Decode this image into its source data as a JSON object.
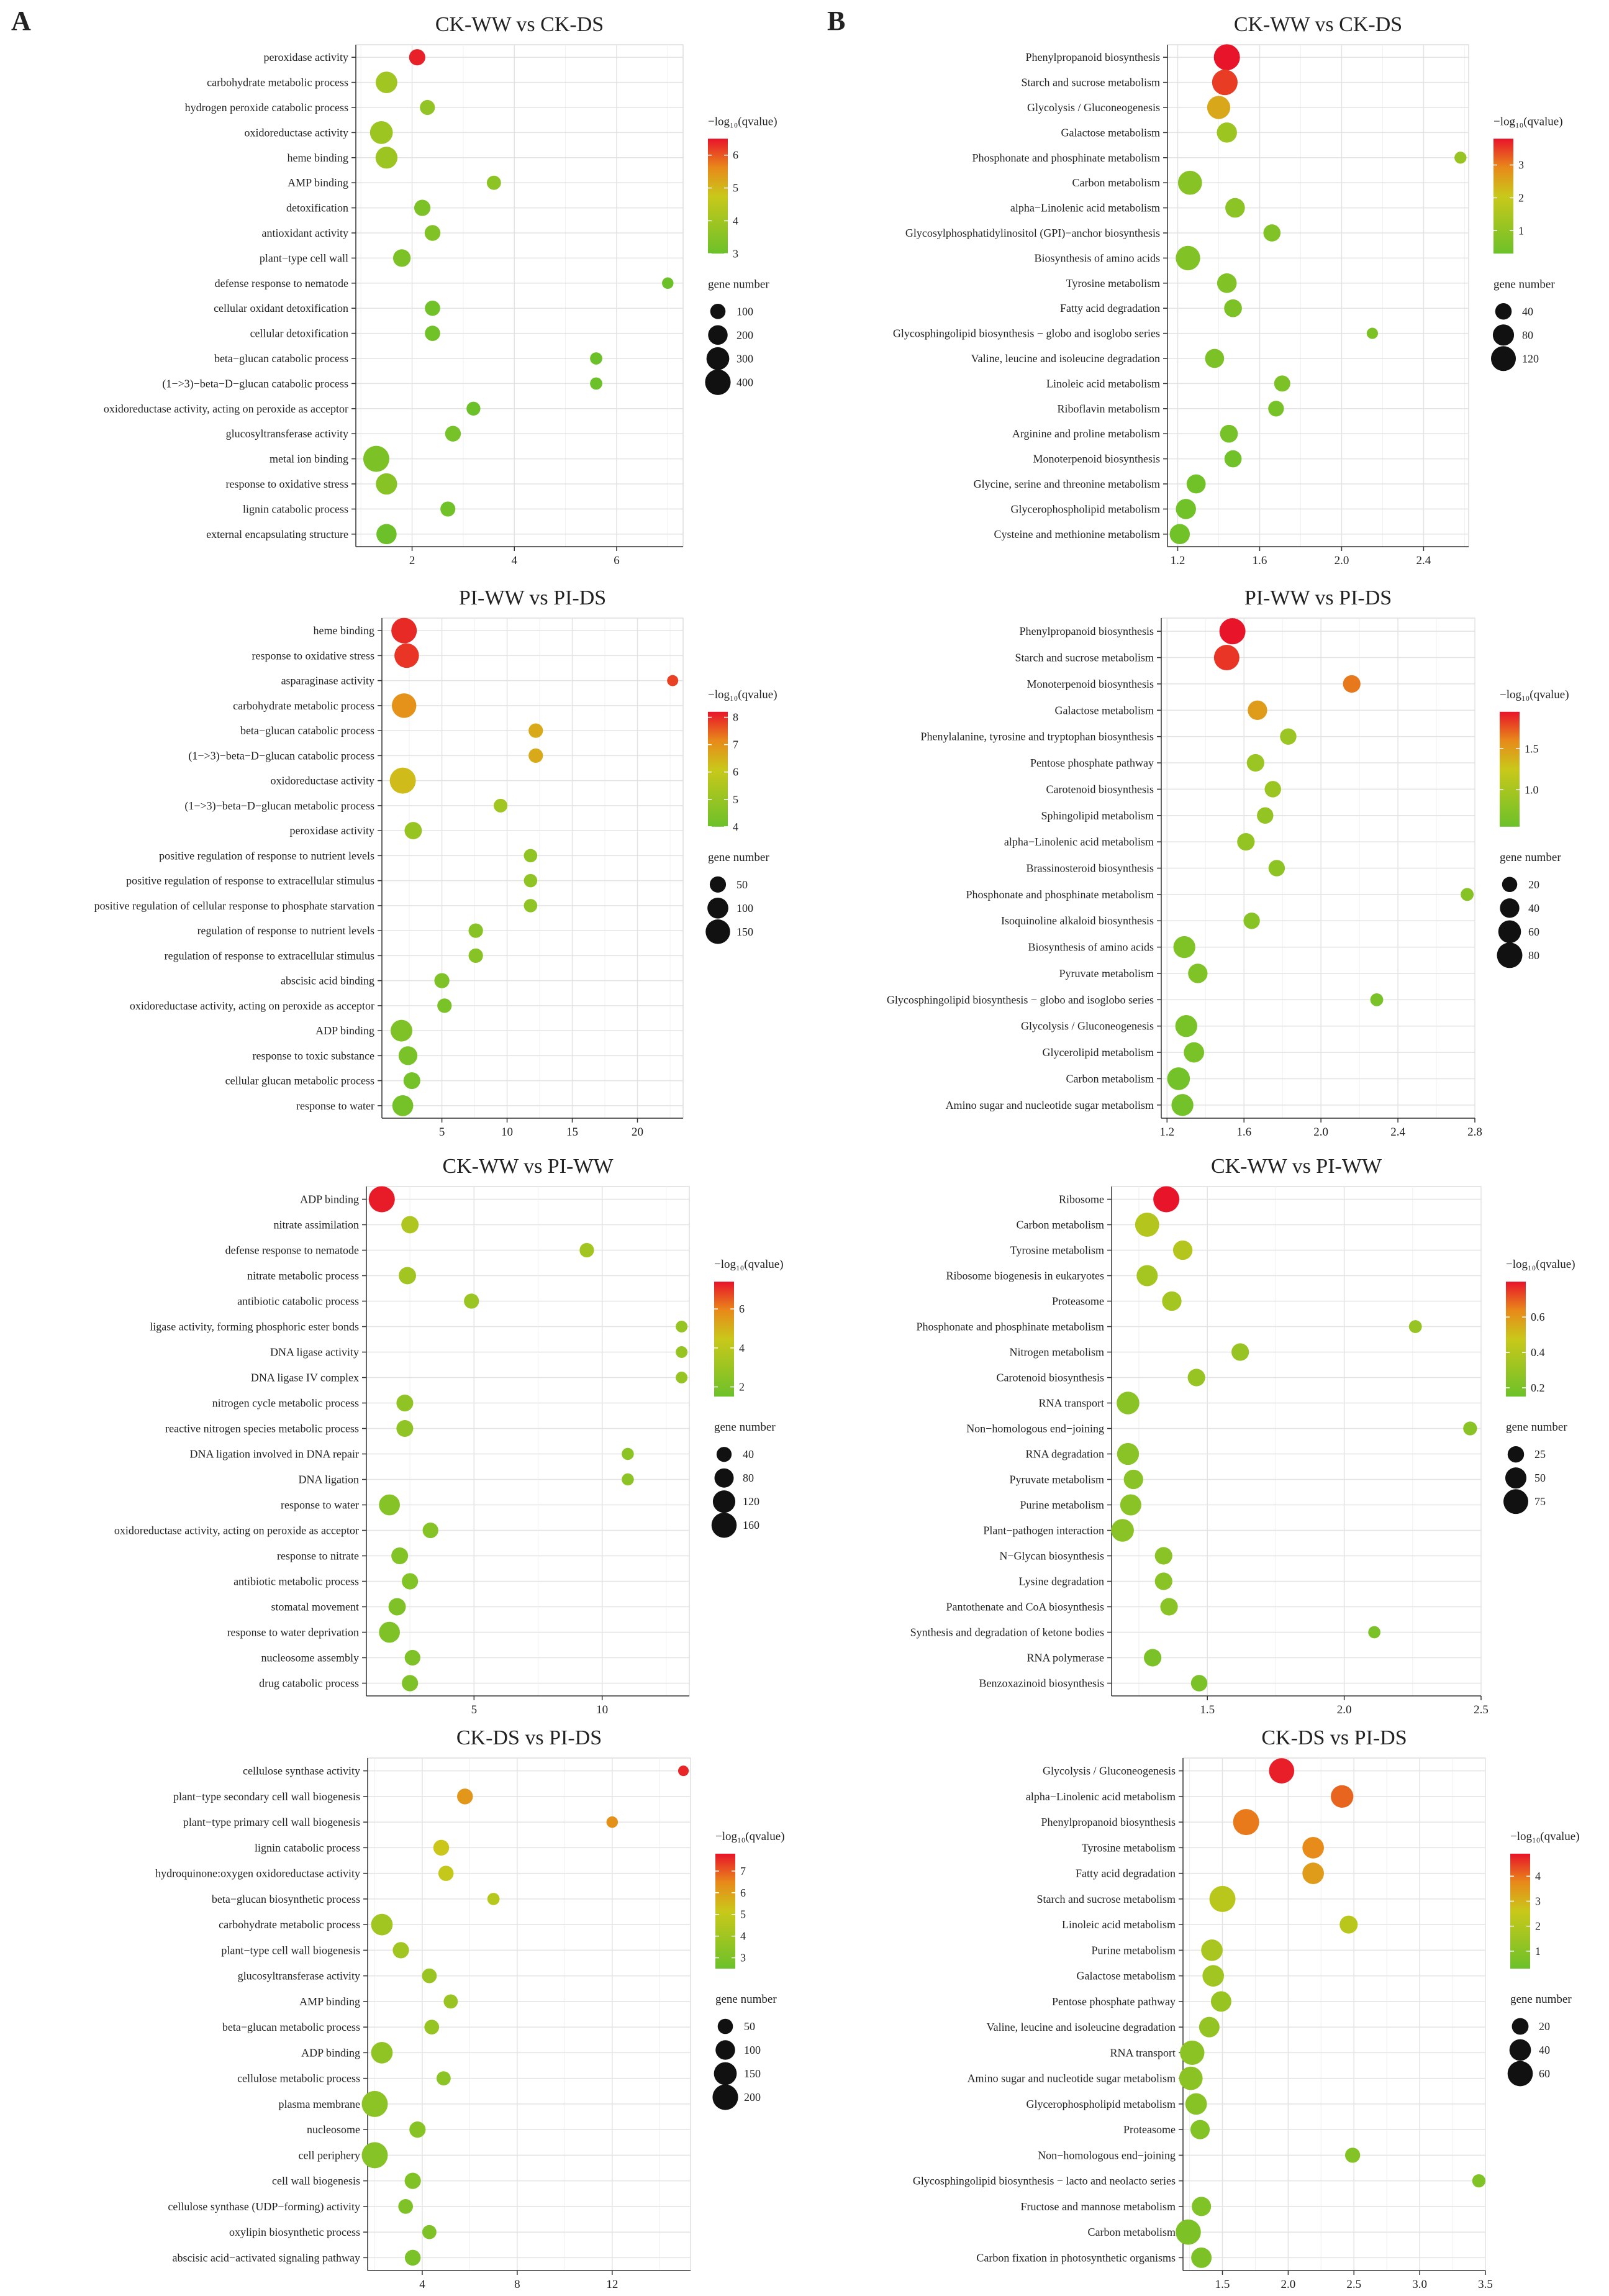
{
  "figure_labels": [
    "A",
    "B"
  ],
  "legend_text": {
    "q_title": "−log₁₀(qvalue)",
    "gene_title": "gene number"
  },
  "colors": {
    "low": "#6cc12a",
    "mid": "#c9c81a",
    "high": "#e8142a",
    "grid": "#e3e3e3",
    "panel": "#ffffff"
  },
  "chart_data": [
    {
      "type": "scatter",
      "title": "CK-WW vs CK-DS",
      "xlabel": "",
      "ylabel": "",
      "xlim": [
        0.9,
        7.3
      ],
      "xticks": [
        2,
        4,
        6
      ],
      "categories": [
        "peroxidase activity",
        "carbohydrate metabolic process",
        "hydrogen peroxide catabolic process",
        "oxidoreductase activity",
        "heme binding",
        "AMP binding",
        "detoxification",
        "antioxidant activity",
        "plant−type cell wall",
        "defense response to nematode",
        "cellular oxidant detoxification",
        "cellular detoxification",
        "beta−glucan catabolic process",
        "(1−>3)−beta−D−glucan catabolic process",
        "oxidoreductase activity, acting on peroxide as acceptor",
        "glucosyltransferase activity",
        "metal ion binding",
        "response to oxidative stress",
        "lignin catabolic process",
        "external encapsulating structure"
      ],
      "x": [
        2.1,
        1.5,
        2.3,
        1.4,
        1.5,
        3.6,
        2.2,
        2.4,
        1.8,
        7.0,
        2.4,
        2.4,
        5.6,
        5.6,
        3.2,
        2.8,
        1.3,
        1.5,
        2.7,
        1.5
      ],
      "q": [
        6.4,
        4.0,
        3.7,
        3.9,
        3.9,
        3.6,
        3.3,
        3.4,
        3.3,
        3.0,
        3.1,
        3.1,
        3.0,
        3.0,
        3.0,
        3.2,
        3.3,
        3.5,
        3.1,
        3.0
      ],
      "size": [
        120,
        260,
        95,
        300,
        270,
        80,
        120,
        110,
        150,
        40,
        100,
        100,
        50,
        50,
        75,
        110,
        420,
        250,
        95,
        220
      ],
      "color_scale": {
        "min": 3,
        "max": 6.5,
        "ticks": [
          3,
          4,
          5,
          6
        ]
      },
      "size_scale": {
        "max": 420,
        "ticks": [
          100,
          200,
          300,
          400
        ]
      }
    },
    {
      "type": "scatter",
      "title": "CK-WW vs CK-DS",
      "xlabel": "",
      "ylabel": "",
      "xlim": [
        1.15,
        2.62
      ],
      "xticks": [
        1.2,
        1.6,
        2.0,
        2.4
      ],
      "categories": [
        "Phenylpropanoid biosynthesis",
        "Starch and sucrose metabolism",
        "Glycolysis / Gluconeogenesis",
        "Galactose metabolism",
        "Phosphonate and phosphinate metabolism",
        "Carbon metabolism",
        "alpha−Linolenic acid metabolism",
        "Glycosylphosphatidylinositol (GPI)−anchor biosynthesis",
        "Biosynthesis of amino acids",
        "Tyrosine metabolism",
        "Fatty acid degradation",
        "Glycosphingolipid biosynthesis − globo and isoglobo series",
        "Valine, leucine and isoleucine degradation",
        "Linoleic acid metabolism",
        "Riboflavin metabolism",
        "Arginine and proline metabolism",
        "Monoterpenoid biosynthesis",
        "Glycine, serine and threonine metabolism",
        "Glycerophospholipid metabolism",
        "Cysteine and methionine metabolism"
      ],
      "x": [
        1.44,
        1.43,
        1.4,
        1.44,
        2.58,
        1.26,
        1.48,
        1.66,
        1.25,
        1.44,
        1.47,
        2.15,
        1.38,
        1.71,
        1.68,
        1.45,
        1.47,
        1.29,
        1.24,
        1.21
      ],
      "q": [
        3.8,
        3.5,
        2.5,
        1.2,
        1.1,
        0.8,
        0.9,
        0.7,
        0.7,
        0.7,
        0.6,
        0.6,
        0.6,
        0.6,
        0.5,
        0.5,
        0.4,
        0.4,
        0.4,
        0.4
      ],
      "size": [
        135,
        128,
        100,
        70,
        15,
        110,
        65,
        45,
        115,
        65,
        50,
        12,
        60,
        38,
        35,
        50,
        45,
        60,
        70,
        70
      ],
      "color_scale": {
        "min": 0.3,
        "max": 3.8,
        "ticks": [
          1,
          2,
          3
        ]
      },
      "size_scale": {
        "max": 135,
        "ticks": [
          40,
          80,
          120
        ]
      }
    },
    {
      "type": "scatter",
      "title": "PI-WW vs PI-DS",
      "xlabel": "",
      "ylabel": "",
      "xlim": [
        0.4,
        23.5
      ],
      "xticks": [
        5,
        10,
        15,
        20
      ],
      "categories": [
        "heme binding",
        "response to oxidative stress",
        "asparaginase activity",
        "carbohydrate metabolic process",
        "beta−glucan catabolic process",
        "(1−>3)−beta−D−glucan catabolic process",
        "oxidoreductase activity",
        "(1−>3)−beta−D−glucan metabolic process",
        "peroxidase activity",
        "positive regulation of response to nutrient levels",
        "positive regulation of response to extracellular stimulus",
        "positive regulation of cellular response to phosphate starvation",
        "regulation of response to nutrient levels",
        "regulation of response to extracellular stimulus",
        "abscisic acid binding",
        "oxidoreductase activity, acting on peroxide as acceptor",
        "ADP binding",
        "response to toxic substance",
        "cellular glucan metabolic process",
        "response to water"
      ],
      "x": [
        2.1,
        2.3,
        22.7,
        2.1,
        12.2,
        12.2,
        2.0,
        9.5,
        2.8,
        11.8,
        11.8,
        11.8,
        7.6,
        7.6,
        5.0,
        5.2,
        1.9,
        2.4,
        2.7,
        2.0
      ],
      "q": [
        8.0,
        7.9,
        7.8,
        7.0,
        6.6,
        6.6,
        6.3,
        5.2,
        5.0,
        4.8,
        4.8,
        4.8,
        4.6,
        4.6,
        4.4,
        4.3,
        4.4,
        4.3,
        4.2,
        4.2
      ],
      "size": [
        165,
        150,
        15,
        150,
        35,
        35,
        175,
        30,
        60,
        28,
        28,
        28,
        35,
        35,
        40,
        35,
        110,
        75,
        55,
        100
      ],
      "color_scale": {
        "min": 4,
        "max": 8.2,
        "ticks": [
          4,
          5,
          6,
          7,
          8
        ]
      },
      "size_scale": {
        "max": 175,
        "ticks": [
          50,
          100,
          150
        ]
      }
    },
    {
      "type": "scatter",
      "title": "PI-WW vs PI-DS",
      "xlabel": "",
      "ylabel": "",
      "xlim": [
        1.17,
        2.8
      ],
      "xticks": [
        1.2,
        1.6,
        2.0,
        2.4,
        2.8
      ],
      "categories": [
        "Phenylpropanoid biosynthesis",
        "Starch and sucrose metabolism",
        "Monoterpenoid biosynthesis",
        "Galactose metabolism",
        "Phenylalanine, tyrosine and tryptophan biosynthesis",
        "Pentose phosphate pathway",
        "Carotenoid biosynthesis",
        "Sphingolipid metabolism",
        "alpha−Linolenic acid metabolism",
        "Brassinosteroid biosynthesis",
        "Phosphonate and phosphinate metabolism",
        "Isoquinoline alkaloid biosynthesis",
        "Biosynthesis of amino acids",
        "Pyruvate metabolism",
        "Glycosphingolipid biosynthesis − globo and isoglobo series",
        "Glycolysis / Gluconeogenesis",
        "Glycerolipid metabolism",
        "Carbon metabolism",
        "Amino sugar and nucleotide sugar metabolism"
      ],
      "x": [
        1.54,
        1.51,
        2.16,
        1.67,
        1.83,
        1.66,
        1.75,
        1.71,
        1.61,
        1.77,
        2.76,
        1.64,
        1.29,
        1.36,
        2.29,
        1.3,
        1.34,
        1.26,
        1.28
      ],
      "q": [
        1.95,
        1.85,
        1.65,
        1.5,
        0.9,
        0.9,
        0.9,
        0.85,
        0.85,
        0.8,
        0.75,
        0.75,
        0.7,
        0.7,
        0.65,
        0.65,
        0.65,
        0.6,
        0.6
      ],
      "size": [
        85,
        80,
        30,
        40,
        25,
        30,
        25,
        25,
        30,
        25,
        12,
        25,
        55,
        40,
        12,
        55,
        45,
        60,
        55
      ],
      "color_scale": {
        "min": 0.55,
        "max": 1.95,
        "ticks": [
          1.0,
          1.5
        ]
      },
      "color_tick_labels": [
        "1.0",
        "1.5"
      ],
      "size_scale": {
        "max": 85,
        "ticks": [
          20,
          40,
          60,
          80
        ]
      }
    },
    {
      "type": "scatter",
      "title": "CK-WW vs PI-WW",
      "xlabel": "",
      "ylabel": "",
      "xlim": [
        0.8,
        13.4
      ],
      "xticks": [
        5,
        10
      ],
      "categories": [
        "ADP binding",
        "nitrate assimilation",
        "defense response to nematode",
        "nitrate metabolic process",
        "antibiotic catabolic process",
        "ligase activity, forming phosphoric ester bonds",
        "DNA ligase activity",
        "DNA ligase IV complex",
        "nitrogen cycle metabolic process",
        "reactive nitrogen species metabolic process",
        "DNA ligation involved in DNA repair",
        "DNA ligation",
        "response to water",
        "oxidoreductase activity, acting on peroxide as acceptor",
        "response to nitrate",
        "antibiotic metabolic process",
        "stomatal movement",
        "response to water deprivation",
        "nucleosome assembly",
        "drug catabolic process"
      ],
      "x": [
        1.4,
        2.5,
        9.4,
        2.4,
        4.9,
        13.1,
        13.1,
        13.1,
        2.3,
        2.3,
        11.0,
        11.0,
        1.7,
        3.3,
        2.1,
        2.5,
        2.0,
        1.7,
        2.6,
        2.5
      ],
      "q": [
        7.3,
        3.6,
        3.2,
        3.2,
        3.0,
        2.8,
        2.8,
        2.8,
        2.6,
        2.6,
        2.5,
        2.5,
        2.3,
        2.3,
        2.2,
        2.2,
        2.1,
        2.1,
        2.1,
        2.1
      ],
      "size": [
        175,
        60,
        35,
        60,
        40,
        18,
        18,
        18,
        55,
        55,
        20,
        20,
        100,
        45,
        55,
        50,
        60,
        100,
        45,
        50
      ],
      "color_scale": {
        "min": 1.5,
        "max": 7.4,
        "ticks": [
          2,
          4,
          6
        ]
      },
      "size_scale": {
        "max": 175,
        "ticks": [
          40,
          80,
          120,
          160
        ]
      }
    },
    {
      "type": "scatter",
      "title": "CK-WW vs PI-WW",
      "xlabel": "",
      "ylabel": "",
      "xlim": [
        1.15,
        2.5
      ],
      "xticks": [
        1.5,
        2.0,
        2.5
      ],
      "categories": [
        "Ribosome",
        "Carbon metabolism",
        "Tyrosine metabolism",
        "Ribosome biogenesis in eukaryotes",
        "Proteasome",
        "Phosphonate and phosphinate metabolism",
        "Nitrogen metabolism",
        "Carotenoid biosynthesis",
        "RNA transport",
        "Non−homologous end−joining",
        "RNA degradation",
        "Pyruvate metabolism",
        "Purine metabolism",
        "Plant−pathogen interaction",
        "N−Glycan biosynthesis",
        "Lysine degradation",
        "Pantothenate and CoA biosynthesis",
        "Synthesis and degradation of ketone bodies",
        "RNA polymerase",
        "Benzoxazinoid biosynthesis"
      ],
      "x": [
        1.35,
        1.28,
        1.41,
        1.28,
        1.37,
        2.26,
        1.62,
        1.46,
        1.21,
        2.46,
        1.21,
        1.23,
        1.22,
        1.19,
        1.34,
        1.34,
        1.36,
        2.11,
        1.3,
        1.47
      ],
      "q": [
        0.8,
        0.4,
        0.4,
        0.35,
        0.35,
        0.3,
        0.3,
        0.3,
        0.25,
        0.25,
        0.25,
        0.25,
        0.25,
        0.25,
        0.25,
        0.25,
        0.25,
        0.2,
        0.2,
        0.2
      ],
      "size": [
        85,
        70,
        40,
        50,
        40,
        12,
        30,
        30,
        60,
        15,
        55,
        40,
        50,
        60,
        30,
        30,
        30,
        10,
        30,
        25
      ],
      "color_scale": {
        "min": 0.15,
        "max": 0.8,
        "ticks": [
          0.2,
          0.4,
          0.6
        ]
      },
      "size_scale": {
        "max": 85,
        "ticks": [
          25,
          50,
          75
        ]
      }
    },
    {
      "type": "scatter",
      "title": "CK-DS vs PI-DS",
      "xlabel": "",
      "ylabel": "",
      "xlim": [
        1.7,
        15.3
      ],
      "xticks": [
        4,
        8,
        12
      ],
      "categories": [
        "cellulose synthase activity",
        "plant−type secondary cell wall biogenesis",
        "plant−type primary cell wall biogenesis",
        "lignin catabolic process",
        "hydroquinone:oxygen oxidoreductase activity",
        "beta−glucan biosynthetic process",
        "carbohydrate metabolic process",
        "plant−type cell wall biogenesis",
        "glucosyltransferase activity",
        "AMP binding",
        "beta−glucan metabolic process",
        "ADP binding",
        "cellulose metabolic process",
        "plasma membrane",
        "nucleosome",
        "cell periphery",
        "cell wall biogenesis",
        "cellulose synthase (UDP−forming) activity",
        "oxylipin biosynthetic process",
        "abscisic acid−activated signaling pathway"
      ],
      "x": [
        15.0,
        5.8,
        12.0,
        4.8,
        5.0,
        7.0,
        2.3,
        3.1,
        4.3,
        5.2,
        4.4,
        2.3,
        4.9,
        2.0,
        3.8,
        2.0,
        3.6,
        3.3,
        4.3,
        3.6
      ],
      "q": [
        7.6,
        6.2,
        6.3,
        5.2,
        5.0,
        4.6,
        4.0,
        4.0,
        3.8,
        3.8,
        3.7,
        3.5,
        3.4,
        3.4,
        3.3,
        3.2,
        3.1,
        3.0,
        3.0,
        2.9
      ],
      "size": [
        15,
        55,
        20,
        55,
        50,
        25,
        130,
        60,
        45,
        40,
        45,
        130,
        40,
        210,
        60,
        210,
        60,
        45,
        40,
        55
      ],
      "color_scale": {
        "min": 2.5,
        "max": 7.8,
        "ticks": [
          3,
          4,
          5,
          6,
          7
        ]
      },
      "size_scale": {
        "max": 210,
        "ticks": [
          50,
          100,
          150,
          200
        ]
      }
    },
    {
      "type": "scatter",
      "title": "CK-DS vs PI-DS",
      "xlabel": "",
      "ylabel": "",
      "xlim": [
        1.2,
        3.5
      ],
      "xticks": [
        1.5,
        2.0,
        2.5,
        3.0,
        3.5
      ],
      "categories": [
        "Glycolysis / Gluconeogenesis",
        "alpha−Linolenic acid metabolism",
        "Phenylpropanoid biosynthesis",
        "Tyrosine metabolism",
        "Fatty acid degradation",
        "Starch and sucrose metabolism",
        "Linoleic acid metabolism",
        "Purine metabolism",
        "Galactose metabolism",
        "Pentose phosphate pathway",
        "Valine, leucine and isoleucine degradation",
        "RNA transport",
        "Amino sugar and nucleotide sugar metabolism",
        "Glycerophospholipid metabolism",
        "Proteasome",
        "Non−homologous end−joining",
        "Glycosphingolipid biosynthesis − lacto and neolacto series",
        "Fructose and mannose metabolism",
        "Carbon metabolism",
        "Carbon fixation in photosynthetic organisms"
      ],
      "x": [
        1.95,
        2.41,
        1.68,
        2.19,
        2.19,
        1.5,
        2.46,
        1.42,
        1.43,
        1.49,
        1.4,
        1.27,
        1.26,
        1.3,
        1.33,
        2.49,
        3.45,
        1.34,
        1.24,
        1.34
      ],
      "q": [
        4.8,
        4.1,
        3.9,
        3.7,
        3.4,
        2.2,
        2.2,
        1.8,
        1.6,
        1.4,
        1.3,
        1.1,
        1.1,
        1.0,
        0.9,
        0.9,
        0.8,
        0.8,
        0.7,
        0.7
      ],
      "size": [
        60,
        45,
        65,
        40,
        40,
        65,
        25,
        40,
        40,
        35,
        35,
        55,
        50,
        40,
        30,
        15,
        10,
        30,
        60,
        35
      ],
      "color_scale": {
        "min": 0.3,
        "max": 4.9,
        "ticks": [
          1,
          2,
          3,
          4
        ]
      },
      "size_scale": {
        "max": 65,
        "ticks": [
          20,
          40,
          60
        ]
      }
    }
  ]
}
